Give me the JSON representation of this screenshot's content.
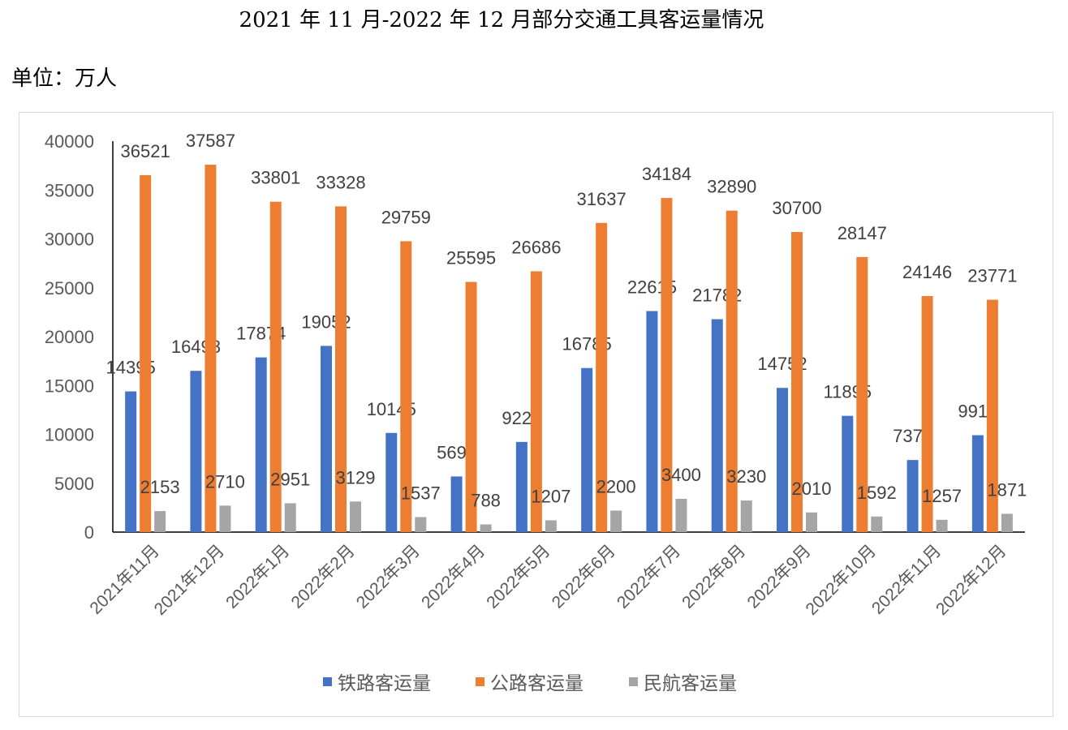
{
  "title": "2021 年 11 月-2022 年 12 月部分交通工具客运量情况",
  "unit_label": "单位：万人",
  "chart_data": {
    "type": "bar",
    "title": "",
    "xlabel": "",
    "ylabel": "",
    "ylim": [
      0,
      40000
    ],
    "yticks": [
      0,
      5000,
      10000,
      15000,
      20000,
      25000,
      30000,
      35000,
      40000
    ],
    "grid": false,
    "legend_position": "bottom",
    "categories": [
      "2021年11月",
      "2021年12月",
      "2022年1月",
      "2022年2月",
      "2022年3月",
      "2022年4月",
      "2022年5月",
      "2022年6月",
      "2022年7月",
      "2022年8月",
      "2022年9月",
      "2022年10月",
      "2022年11月",
      "2022年12月"
    ],
    "series": [
      {
        "name": "铁路客运量",
        "color": "#4472C4",
        "values": [
          14395,
          16498,
          17874,
          19052,
          10145,
          5691,
          9225,
          16785,
          22615,
          21782,
          14752,
          11895,
          7374,
          9913
        ]
      },
      {
        "name": "公路客运量",
        "color": "#ED7D31",
        "values": [
          36521,
          37587,
          33801,
          33328,
          29759,
          25595,
          26686,
          31637,
          34184,
          32890,
          30700,
          28147,
          24146,
          23771
        ]
      },
      {
        "name": "民航客运量",
        "color": "#A5A5A5",
        "values": [
          2153,
          2710,
          2951,
          3129,
          1537,
          788,
          1207,
          2200,
          3400,
          3230,
          2010,
          1592,
          1257,
          1871
        ]
      }
    ]
  }
}
